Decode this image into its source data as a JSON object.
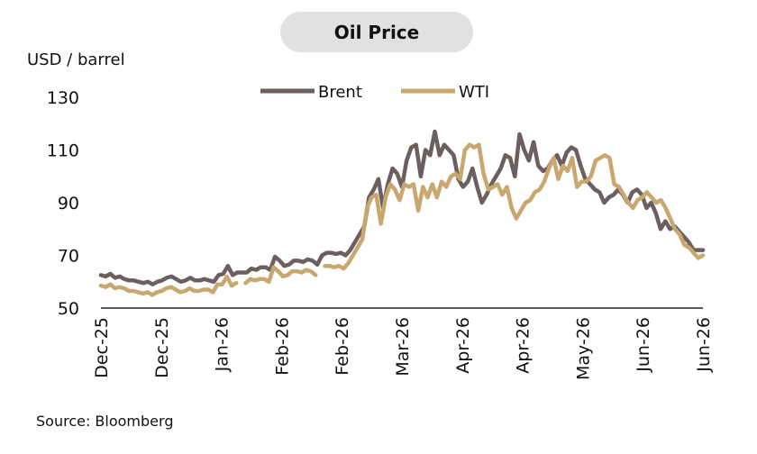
{
  "chart_data": {
    "type": "line",
    "title": "Oil Price",
    "ylabel": "USD / barrel",
    "source": "Source: Bloomberg",
    "ylim": [
      50,
      130
    ],
    "yticks": [
      50,
      70,
      90,
      110,
      130
    ],
    "xticks": [
      "Dec-25",
      "Dec-25",
      "Jan-26",
      "Feb-26",
      "Feb-26",
      "Mar-26",
      "Apr-26",
      "Apr-26",
      "May-26",
      "Jun-26",
      "Jun-26"
    ],
    "legend_position": "top-center",
    "grid": false,
    "series": [
      {
        "name": "Brent",
        "color": "#6b5f5f",
        "values": [
          62.5,
          62,
          63,
          61.5,
          62,
          61,
          60.5,
          60.5,
          60,
          59.5,
          60,
          59,
          60,
          60.5,
          61.5,
          62,
          61,
          60,
          60.5,
          61.5,
          60.5,
          60.5,
          61,
          60.5,
          60,
          62.5,
          63,
          66,
          62.5,
          63.5,
          63.5,
          63.5,
          65,
          64.5,
          65.5,
          65.5,
          64.5,
          69.5,
          68,
          66,
          66.5,
          68,
          68,
          67.5,
          68.5,
          68,
          66.5,
          70,
          71,
          71,
          70.5,
          71,
          70,
          72,
          75,
          78,
          81,
          92,
          95,
          99,
          88,
          97,
          103,
          101,
          96,
          106,
          111,
          112,
          100,
          110,
          108,
          117,
          108,
          112,
          110,
          108,
          99,
          96,
          98,
          103,
          96,
          90,
          93,
          97,
          100,
          103,
          108,
          107,
          100,
          116,
          110,
          106,
          113,
          104,
          102,
          103,
          106,
          108,
          104,
          109,
          111,
          110,
          104,
          99,
          97,
          95,
          94,
          90,
          92,
          93,
          95,
          93,
          90,
          94,
          95,
          93,
          88,
          90,
          86,
          80,
          83,
          80,
          81,
          79,
          77,
          75,
          72,
          72,
          72
        ],
        "gaps": []
      },
      {
        "name": "WTI",
        "color": "#c9a870",
        "values": [
          58.5,
          58,
          59,
          57.5,
          58,
          57.5,
          56.5,
          56.5,
          56,
          55.5,
          56,
          55,
          56,
          56.5,
          57.5,
          58,
          57,
          56,
          56.5,
          57.5,
          56.5,
          56.5,
          57,
          57,
          56,
          59,
          59,
          62,
          58.5,
          59.5,
          null,
          59.5,
          61,
          60.5,
          61,
          61,
          60,
          65.5,
          64,
          62,
          62.5,
          64,
          64,
          63.5,
          64.5,
          64,
          62.5,
          null,
          66,
          66,
          65.5,
          66,
          65,
          67,
          70,
          73,
          76,
          88,
          92,
          93,
          82,
          92,
          97,
          95,
          91,
          97,
          96,
          97,
          87,
          96,
          92,
          97,
          92,
          98,
          96,
          100,
          101,
          99,
          110,
          112,
          111,
          112,
          101,
          95,
          96,
          97,
          93,
          96,
          88,
          84,
          87,
          90,
          91,
          94,
          95,
          98,
          103,
          107,
          99,
          104,
          102,
          107,
          96,
          98,
          98,
          100,
          106,
          107,
          108,
          107,
          97,
          96,
          93,
          90,
          88,
          91,
          92,
          94,
          92,
          90,
          91,
          88,
          84,
          80,
          78,
          74,
          73,
          71,
          69,
          70
        ]
      }
    ]
  }
}
